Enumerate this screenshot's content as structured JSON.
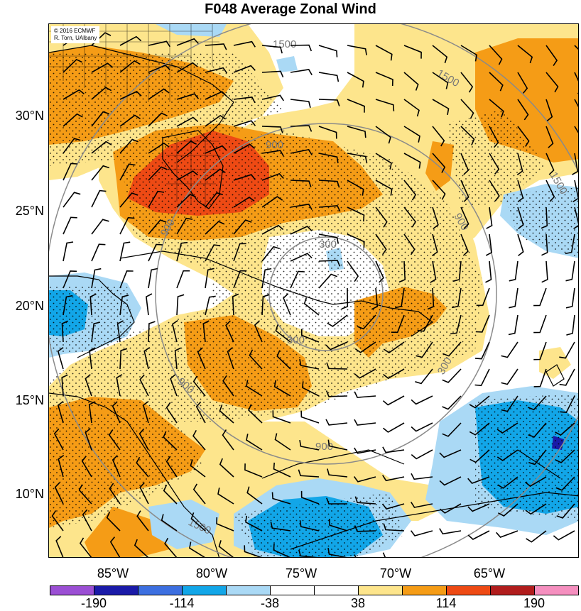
{
  "title": "F048 Average Zonal Wind",
  "copyright": {
    "line1": "© 2016 ECMWF",
    "line2": "R. Torn, UAlbany"
  },
  "lat_labels": [
    "30°N",
    "25°N",
    "20°N",
    "15°N",
    "10°N"
  ],
  "lon_labels": [
    "85°W",
    "80°W",
    "75°W",
    "70°W",
    "65°W"
  ],
  "colorbar": {
    "labels": [
      "-190",
      "-114",
      "-38",
      "38",
      "114",
      "190"
    ],
    "colors": [
      "#9b4fd4",
      "#1a1aa8",
      "#3c6fe0",
      "#12a6e8",
      "#aad9f5",
      "#ffffff",
      "#ffffff",
      "#fde58c",
      "#f59c16",
      "#ee4a14",
      "#b11d1d",
      "#f58fbf"
    ]
  },
  "contour_labels": [
    "1500",
    "1500",
    "1500",
    "900",
    "900",
    "900",
    "900",
    "900",
    "300",
    "300",
    "300",
    "1500"
  ],
  "colors": {
    "land_outline": "#000000",
    "range_ring": "#8a8a8a",
    "stipple": "#000000"
  }
}
